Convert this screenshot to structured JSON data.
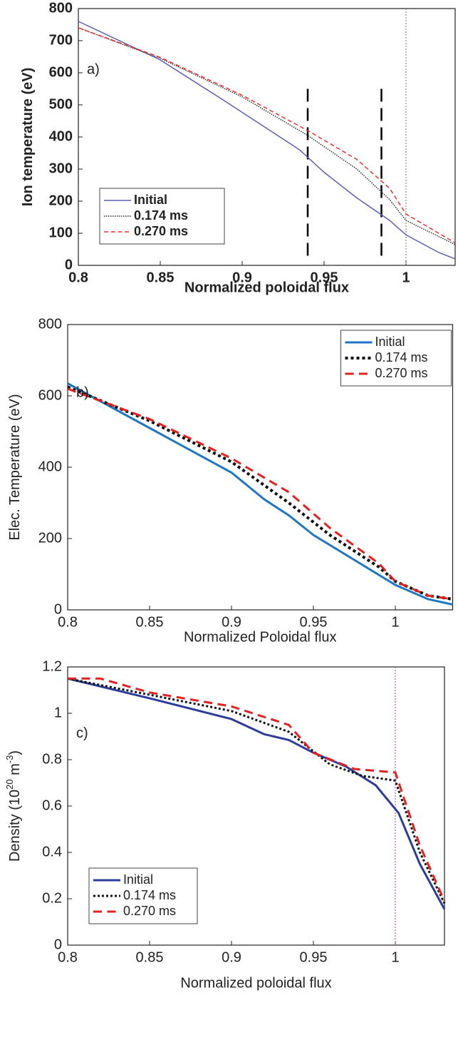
{
  "chart_data": [
    {
      "type": "line",
      "annotation": "a)",
      "xlabel": "Normalized poloidal flux",
      "ylabel": [
        "Ion temperature (eV)"
      ],
      "xlim": [
        0.8,
        1.03
      ],
      "ylim": [
        0,
        800
      ],
      "xticks": [
        0.8,
        0.85,
        0.9,
        0.95,
        1
      ],
      "yticks": [
        0,
        100,
        200,
        300,
        400,
        500,
        600,
        700,
        800
      ],
      "grid": false,
      "legend": "lower-left",
      "font_weight": "bold",
      "vlines": [
        {
          "x": 0.94,
          "ymin": 30,
          "ymax": 550,
          "style": "dashed",
          "color": "#000000"
        },
        {
          "x": 0.985,
          "ymin": 30,
          "ymax": 550,
          "style": "dashed",
          "color": "#000000"
        },
        {
          "x": 1,
          "style": "dotted",
          "color": "#777777"
        }
      ],
      "series": [
        {
          "name": "Initial",
          "color": "#5b5fb5",
          "style": "solid",
          "width": 1.5,
          "x": [
            0.8,
            0.85,
            0.89,
            0.92,
            0.935,
            0.95,
            0.97,
            0.99,
            1.0,
            1.02,
            1.03
          ],
          "values": [
            760,
            640,
            510,
            410,
            360,
            290,
            210,
            140,
            95,
            40,
            20
          ]
        },
        {
          "name": "0.174 ms",
          "color": "#333333",
          "style": "dotted",
          "width": 1.5,
          "x": [
            0.8,
            0.85,
            0.9,
            0.94,
            0.97,
            0.99,
            1.0,
            1.03
          ],
          "values": [
            740,
            645,
            525,
            405,
            300,
            205,
            140,
            65
          ]
        },
        {
          "name": "0.270 ms",
          "color": "#f03030",
          "style": "dashed",
          "width": 1.5,
          "x": [
            0.8,
            0.85,
            0.9,
            0.94,
            0.97,
            0.99,
            1.0,
            1.03
          ],
          "values": [
            740,
            648,
            530,
            420,
            330,
            240,
            160,
            70
          ]
        }
      ]
    },
    {
      "type": "line",
      "annotation": "b)",
      "xlabel": "Normalized Poloidal flux",
      "ylabel": [
        "Elec. Temperature (eV)"
      ],
      "xlim": [
        0.8,
        1.035
      ],
      "ylim": [
        0,
        800
      ],
      "xticks": [
        0.8,
        0.85,
        0.9,
        0.95,
        1
      ],
      "yticks": [
        0,
        200,
        400,
        600,
        800
      ],
      "grid": false,
      "legend": "upper-right",
      "font_weight": "normal",
      "vlines": [],
      "series": [
        {
          "name": "Initial",
          "color": "#1f77c4",
          "style": "solid",
          "width": 3,
          "x": [
            0.8,
            0.85,
            0.9,
            0.92,
            0.935,
            0.95,
            0.975,
            1.0,
            1.02,
            1.035
          ],
          "values": [
            635,
            510,
            385,
            310,
            265,
            210,
            140,
            70,
            30,
            15
          ]
        },
        {
          "name": "0.174 ms",
          "color": "#111111",
          "style": "dotted",
          "width": 4,
          "x": [
            0.8,
            0.85,
            0.9,
            0.935,
            0.96,
            0.99,
            1.0,
            1.02,
            1.035
          ],
          "values": [
            625,
            530,
            415,
            300,
            210,
            120,
            80,
            40,
            30
          ]
        },
        {
          "name": "0.270 ms",
          "color": "#e52020",
          "style": "dashed",
          "width": 3,
          "x": [
            0.8,
            0.85,
            0.9,
            0.935,
            0.96,
            0.99,
            1.0,
            1.02,
            1.035
          ],
          "values": [
            620,
            535,
            425,
            330,
            230,
            130,
            80,
            40,
            30
          ]
        }
      ]
    },
    {
      "type": "line",
      "annotation": "c)",
      "xlabel": "Normalized poloidal flux",
      "ylabel": [
        "Density (10",
        "20",
        " m",
        "-3",
        ")"
      ],
      "xlim": [
        0.8,
        1.03
      ],
      "ylim": [
        0,
        1.2
      ],
      "xticks": [
        0.8,
        0.85,
        0.9,
        0.95,
        1
      ],
      "yticks": [
        0,
        0.2,
        0.4,
        0.6,
        0.8,
        1,
        1.2
      ],
      "grid": false,
      "legend": "lower-left",
      "font_weight": "normal",
      "vlines": [
        {
          "x": 1,
          "style": "dotted",
          "color": "#b040b0"
        }
      ],
      "series": [
        {
          "name": "Initial",
          "color": "#2c3e99",
          "style": "solid",
          "width": 3,
          "x": [
            0.8,
            0.85,
            0.9,
            0.92,
            0.935,
            0.95,
            0.97,
            0.988,
            1.002,
            1.015,
            1.03
          ],
          "values": [
            1.15,
            1.065,
            0.975,
            0.91,
            0.885,
            0.83,
            0.77,
            0.69,
            0.57,
            0.35,
            0.155
          ]
        },
        {
          "name": "0.174 ms",
          "color": "#111111",
          "style": "dotted",
          "width": 3,
          "x": [
            0.8,
            0.85,
            0.9,
            0.935,
            0.96,
            0.98,
            1.0,
            1.015,
            1.03
          ],
          "values": [
            1.15,
            1.08,
            1.01,
            0.92,
            0.78,
            0.73,
            0.71,
            0.4,
            0.18
          ]
        },
        {
          "name": "0.270 ms",
          "color": "#e52020",
          "style": "dashed",
          "width": 3,
          "x": [
            0.8,
            0.82,
            0.85,
            0.9,
            0.935,
            0.95,
            0.975,
            1.0,
            1.015,
            1.03
          ],
          "values": [
            1.15,
            1.15,
            1.09,
            1.03,
            0.95,
            0.83,
            0.76,
            0.745,
            0.43,
            0.19
          ]
        }
      ]
    }
  ]
}
